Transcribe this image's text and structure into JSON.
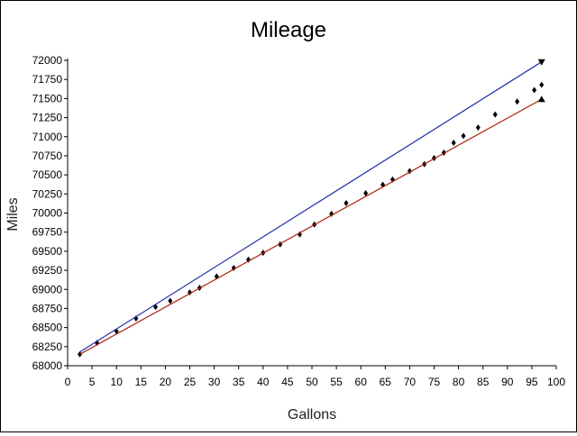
{
  "chart_data": {
    "type": "scatter",
    "title": "Mileage",
    "xlabel": "Gallons",
    "ylabel": "Miles",
    "xlim": [
      0,
      100
    ],
    "ylim": [
      68000,
      72000
    ],
    "x_ticks": [
      0,
      5,
      10,
      15,
      20,
      25,
      30,
      35,
      40,
      45,
      50,
      55,
      60,
      65,
      70,
      75,
      80,
      85,
      90,
      95,
      100
    ],
    "y_ticks": [
      68000,
      68250,
      68500,
      68750,
      69000,
      69250,
      69500,
      69750,
      70000,
      70250,
      70500,
      70750,
      71000,
      71250,
      71500,
      71750,
      72000
    ],
    "grid": false,
    "series": [
      {
        "kind": "points",
        "color": "#000000",
        "marker": "diamond",
        "points": [
          [
            2.5,
            68150
          ],
          [
            6,
            68300
          ],
          [
            10,
            68450
          ],
          [
            14,
            68620
          ],
          [
            18,
            68770
          ],
          [
            21,
            68850
          ],
          [
            25,
            68960
          ],
          [
            27,
            69020
          ],
          [
            30.5,
            69170
          ],
          [
            34,
            69280
          ],
          [
            37,
            69390
          ],
          [
            40,
            69480
          ],
          [
            43.5,
            69590
          ],
          [
            47.5,
            69720
          ],
          [
            50.5,
            69850
          ],
          [
            54,
            69990
          ],
          [
            57,
            70130
          ],
          [
            61,
            70260
          ],
          [
            64.5,
            70370
          ],
          [
            66.5,
            70440
          ],
          [
            70,
            70550
          ],
          [
            73,
            70640
          ],
          [
            75,
            70720
          ],
          [
            77,
            70790
          ],
          [
            79,
            70920
          ],
          [
            81,
            71010
          ],
          [
            84,
            71120
          ],
          [
            87.5,
            71290
          ],
          [
            92,
            71460
          ],
          [
            95.5,
            71610
          ],
          [
            97,
            71680
          ]
        ]
      },
      {
        "kind": "line",
        "color": "#2233aa",
        "end_marker": "triangle-down",
        "points": [
          [
            2.5,
            68180
          ],
          [
            97,
            71980
          ]
        ]
      },
      {
        "kind": "line",
        "color": "#aa2211",
        "end_marker": "triangle-up",
        "points": [
          [
            2.5,
            68150
          ],
          [
            97,
            71490
          ]
        ]
      }
    ]
  }
}
